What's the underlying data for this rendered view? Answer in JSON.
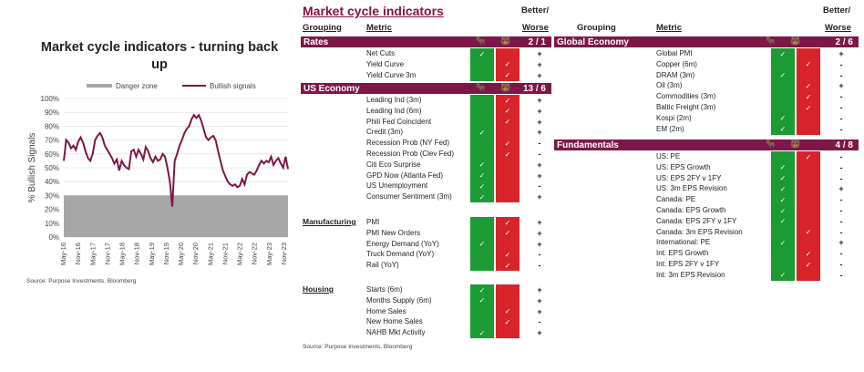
{
  "chart_data": {
    "type": "line",
    "title": "Market cycle indicators - turning back up",
    "ylabel": "% Bullish Signals",
    "ylim": [
      0,
      100
    ],
    "yticks": [
      "0%",
      "10%",
      "20%",
      "30%",
      "40%",
      "50%",
      "60%",
      "70%",
      "80%",
      "90%",
      "100%"
    ],
    "x_tick_labels": [
      "May-16",
      "Nov-16",
      "May-17",
      "Nov-17",
      "May-18",
      "Nov-18",
      "May-19",
      "Nov-19",
      "May-20",
      "Nov-20",
      "May-21",
      "Nov-21",
      "May-22",
      "Nov-22",
      "May-23",
      "Nov-23"
    ],
    "legend": [
      "Danger zone",
      "Bullish signals"
    ],
    "legend_position": "top",
    "series": [
      {
        "name": "Danger zone",
        "type": "area",
        "value": 30
      },
      {
        "name": "Bullish signals",
        "x": [
          0,
          1,
          2,
          3,
          4,
          5,
          6,
          7,
          8,
          9,
          10,
          11,
          12,
          13,
          14,
          15,
          16,
          17,
          18,
          19,
          20,
          21,
          22,
          23,
          24,
          25,
          26,
          27,
          28,
          29,
          30,
          31,
          32,
          33,
          34,
          35,
          36,
          37,
          38,
          39,
          40,
          41,
          42,
          43,
          44,
          45,
          46,
          47,
          48,
          49,
          50,
          51,
          52,
          53,
          54,
          55,
          56,
          57,
          58,
          59,
          60,
          61,
          62,
          63,
          64,
          65,
          66,
          67,
          68,
          69,
          70,
          71,
          72,
          73,
          74,
          75,
          76,
          77,
          78,
          79,
          80,
          81,
          82,
          83,
          84,
          85,
          86,
          87,
          88,
          89,
          90,
          91,
          92,
          93
        ],
        "values": [
          55,
          70,
          68,
          64,
          66,
          63,
          69,
          72,
          68,
          62,
          57,
          55,
          60,
          70,
          73,
          75,
          72,
          66,
          63,
          60,
          57,
          53,
          56,
          48,
          55,
          52,
          50,
          49,
          62,
          63,
          58,
          63,
          60,
          56,
          65,
          62,
          57,
          54,
          58,
          55,
          56,
          60,
          58,
          50,
          40,
          22,
          55,
          60,
          66,
          70,
          75,
          78,
          80,
          85,
          88,
          86,
          88,
          84,
          78,
          72,
          70,
          72,
          73,
          70,
          62,
          55,
          48,
          44,
          40,
          38,
          37,
          38,
          36,
          37,
          42,
          38,
          45,
          47,
          46,
          45,
          48,
          52,
          55,
          53,
          55,
          54,
          58,
          52,
          55,
          57,
          53,
          50,
          58,
          49
        ]
      }
    ],
    "source": "Source: Purpose Investments, Bloomberg"
  },
  "table": {
    "title": "Market cycle indicators",
    "headers": {
      "grouping": "Grouping",
      "metric": "Metric",
      "better": "Better/",
      "worse": "Worse"
    },
    "source": "Source: Purpose Investments, Bloomberg",
    "left": {
      "rates": {
        "label": "Rates",
        "score": "2 / 1",
        "rows": [
          {
            "metric": "Net Cuts",
            "bull": true,
            "bear": false,
            "sign": "+"
          },
          {
            "metric": "Yield Curve",
            "bull": false,
            "bear": true,
            "sign": "+"
          },
          {
            "metric": "Yield Curve 3m",
            "bull": false,
            "bear": true,
            "sign": "+"
          }
        ]
      },
      "us_economy": {
        "label": "US Economy",
        "score": "13 / 6",
        "rows": [
          {
            "metric": "Leading Ind (3m)",
            "bull": false,
            "bear": true,
            "sign": "+"
          },
          {
            "metric": "Leading Ind (6m)",
            "bull": false,
            "bear": true,
            "sign": "+"
          },
          {
            "metric": "Phili Fed Coincident",
            "bull": false,
            "bear": true,
            "sign": "+"
          },
          {
            "metric": "Credit (3m)",
            "bull": true,
            "bear": false,
            "sign": "+"
          },
          {
            "metric": "Recession Prob (NY Fed)",
            "bull": false,
            "bear": true,
            "sign": "-"
          },
          {
            "metric": "Recession Prob (Clev Fed)",
            "bull": false,
            "bear": true,
            "sign": "-"
          },
          {
            "metric": "Citi Eco Surprise",
            "bull": true,
            "bear": false,
            "sign": "+"
          },
          {
            "metric": "GPD Now (Atlanta Fed)",
            "bull": true,
            "bear": false,
            "sign": "+"
          },
          {
            "metric": "US Unemployment",
            "bull": true,
            "bear": false,
            "sign": "-"
          },
          {
            "metric": "Consumer Sentiment (3m)",
            "bull": true,
            "bear": false,
            "sign": "+"
          }
        ]
      },
      "manufacturing": {
        "label": "Manufacturing",
        "rows": [
          {
            "metric": "PMI",
            "bull": false,
            "bear": true,
            "sign": "+"
          },
          {
            "metric": "PMI New Orders",
            "bull": false,
            "bear": true,
            "sign": "+"
          },
          {
            "metric": "Energy Demand (YoY)",
            "bull": true,
            "bear": false,
            "sign": "+"
          },
          {
            "metric": "Truck Demand (YoY)",
            "bull": false,
            "bear": true,
            "sign": "-"
          },
          {
            "metric": "Rail (YoY)",
            "bull": false,
            "bear": true,
            "sign": "-"
          }
        ]
      },
      "housing": {
        "label": "Housing",
        "rows": [
          {
            "metric": "Starts (6m)",
            "bull": true,
            "bear": false,
            "sign": "+"
          },
          {
            "metric": "Months Supply (6m)",
            "bull": true,
            "bear": false,
            "sign": "+"
          },
          {
            "metric": "Home Sales",
            "bull": false,
            "bear": true,
            "sign": "+"
          },
          {
            "metric": "New Home Sales",
            "bull": false,
            "bear": true,
            "sign": "-"
          },
          {
            "metric": "NAHB Mkt Activity",
            "bull": true,
            "bear": false,
            "sign": "+"
          }
        ]
      }
    },
    "right": {
      "global_economy": {
        "label": "Global Economy",
        "score": "2 / 6",
        "rows": [
          {
            "metric": "Global PMI",
            "bull": true,
            "bear": false,
            "sign": "+"
          },
          {
            "metric": "Copper (6m)",
            "bull": false,
            "bear": true,
            "sign": "-"
          },
          {
            "metric": "DRAM (3m)",
            "bull": true,
            "bear": false,
            "sign": "-"
          },
          {
            "metric": "Oil (3m)",
            "bull": false,
            "bear": true,
            "sign": "+"
          },
          {
            "metric": "Commodities (3m)",
            "bull": false,
            "bear": true,
            "sign": "-"
          },
          {
            "metric": "Baltic Freight (3m)",
            "bull": false,
            "bear": true,
            "sign": "-"
          },
          {
            "metric": "Kospi (2m)",
            "bull": true,
            "bear": false,
            "sign": "-"
          },
          {
            "metric": "EM (2m)",
            "bull": true,
            "bear": false,
            "sign": "-"
          }
        ]
      },
      "fundamentals": {
        "label": "Fundamentals",
        "score": "4 / 8",
        "rows": [
          {
            "metric": "US: PE",
            "bull": false,
            "bear": true,
            "sign": "-"
          },
          {
            "metric": "US: EPS Growth",
            "bull": true,
            "bear": false,
            "sign": "-"
          },
          {
            "metric": "US: EPS 2FY v 1FY",
            "bull": true,
            "bear": false,
            "sign": "-"
          },
          {
            "metric": "US: 3m EPS Revision",
            "bull": true,
            "bear": false,
            "sign": "+"
          },
          {
            "metric": "Canada: PE",
            "bull": true,
            "bear": false,
            "sign": "-"
          },
          {
            "metric": "Canada: EPS Growth",
            "bull": true,
            "bear": false,
            "sign": "-"
          },
          {
            "metric": "Canada: EPS 2FY v 1FY",
            "bull": true,
            "bear": false,
            "sign": "-"
          },
          {
            "metric": "Canada: 3m EPS Revision",
            "bull": false,
            "bear": true,
            "sign": "-"
          },
          {
            "metric": "International: PE",
            "bull": true,
            "bear": false,
            "sign": "+"
          },
          {
            "metric": "Int: EPS Growth",
            "bull": false,
            "bear": true,
            "sign": "-"
          },
          {
            "metric": "Int: EPS 2FY v 1FY",
            "bull": false,
            "bear": true,
            "sign": "-"
          },
          {
            "metric": "Int: 3m EPS Revision",
            "bull": true,
            "bear": false,
            "sign": "-"
          }
        ]
      }
    }
  }
}
